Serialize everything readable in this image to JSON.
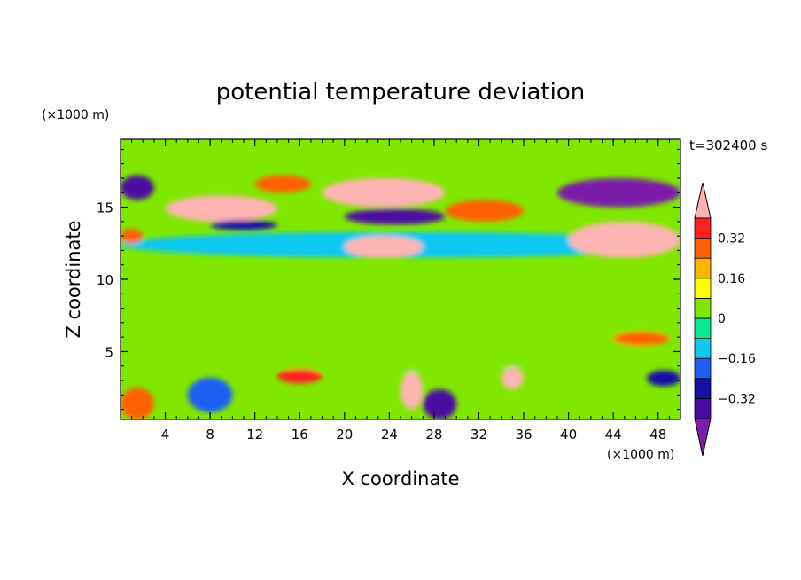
{
  "chart_data": {
    "type": "heatmap",
    "title": "potential temperature deviation",
    "xlabel": "X coordinate",
    "ylabel": "Z coordinate",
    "x_unit": "(×1000 m)",
    "y_unit": "(×1000 m)",
    "time_label": "t=302400 s",
    "xlim": [
      0,
      50
    ],
    "ylim": [
      0.3,
      19.7
    ],
    "x_ticks": [
      "4",
      "8",
      "12",
      "16",
      "20",
      "24",
      "28",
      "32",
      "36",
      "40",
      "44",
      "48"
    ],
    "y_ticks": [
      "5",
      "10",
      "15"
    ],
    "colorbar": {
      "labels": [
        "0.32",
        "0.16",
        "0",
        "−0.16",
        "−0.32"
      ],
      "levels": [
        -0.48,
        -0.4,
        -0.32,
        -0.24,
        -0.16,
        -0.08,
        0,
        0.08,
        0.16,
        0.24,
        0.32,
        0.4,
        0.48
      ],
      "colors": [
        "#7a1ea8",
        "#4b0aa0",
        "#1410a8",
        "#1f5ff5",
        "#10c8f0",
        "#0ae896",
        "#80e800",
        "#ffff00",
        "#ffb400",
        "#ff6000",
        "#ff2020",
        "#ffb4b4"
      ]
    },
    "features": [
      {
        "x": [
          0,
          50
        ],
        "z": [
          0.3,
          19.7
        ],
        "value": 0.04
      },
      {
        "x": [
          0,
          50
        ],
        "z": [
          3.5,
          10
        ],
        "value": 0.02
      },
      {
        "x": [
          0,
          50
        ],
        "z": [
          11.5,
          13.3
        ],
        "value": -0.12
      },
      {
        "x": [
          4,
          14
        ],
        "z": [
          14,
          15.8
        ],
        "value": 0.44
      },
      {
        "x": [
          18,
          29
        ],
        "z": [
          15,
          17
        ],
        "value": 0.44
      },
      {
        "x": [
          29,
          36
        ],
        "z": [
          14,
          15.5
        ],
        "value": 0.3
      },
      {
        "x": [
          20,
          29
        ],
        "z": [
          13.8,
          14.9
        ],
        "value": -0.36
      },
      {
        "x": [
          8,
          14
        ],
        "z": [
          13.4,
          14.1
        ],
        "value": -0.28
      },
      {
        "x": [
          39,
          50
        ],
        "z": [
          15,
          17
        ],
        "value": -0.44
      },
      {
        "x": [
          40,
          50
        ],
        "z": [
          11.5,
          14
        ],
        "value": 0.44
      },
      {
        "x": [
          20,
          27
        ],
        "z": [
          11.5,
          13
        ],
        "value": 0.4
      },
      {
        "x": [
          0,
          3
        ],
        "z": [
          15.5,
          17.2
        ],
        "value": -0.38
      },
      {
        "x": [
          0,
          2
        ],
        "z": [
          12.5,
          13.5
        ],
        "value": 0.3
      },
      {
        "x": [
          12,
          17
        ],
        "z": [
          16,
          17.2
        ],
        "value": 0.3
      },
      {
        "x": [
          6,
          10
        ],
        "z": [
          0.8,
          3.2
        ],
        "value": -0.24
      },
      {
        "x": [
          0,
          3
        ],
        "z": [
          0.3,
          2.5
        ],
        "value": 0.3
      },
      {
        "x": [
          14,
          18
        ],
        "z": [
          2.8,
          3.8
        ],
        "value": 0.36
      },
      {
        "x": [
          25,
          27
        ],
        "z": [
          1,
          3.6
        ],
        "value": 0.4
      },
      {
        "x": [
          27,
          30
        ],
        "z": [
          0.3,
          2.4
        ],
        "value": -0.36
      },
      {
        "x": [
          34,
          36
        ],
        "z": [
          2.4,
          3.9
        ],
        "value": 0.44
      },
      {
        "x": [
          44,
          49
        ],
        "z": [
          5.4,
          6.4
        ],
        "value": 0.24
      },
      {
        "x": [
          47,
          50
        ],
        "z": [
          2.6,
          3.7
        ],
        "value": -0.3
      }
    ]
  }
}
